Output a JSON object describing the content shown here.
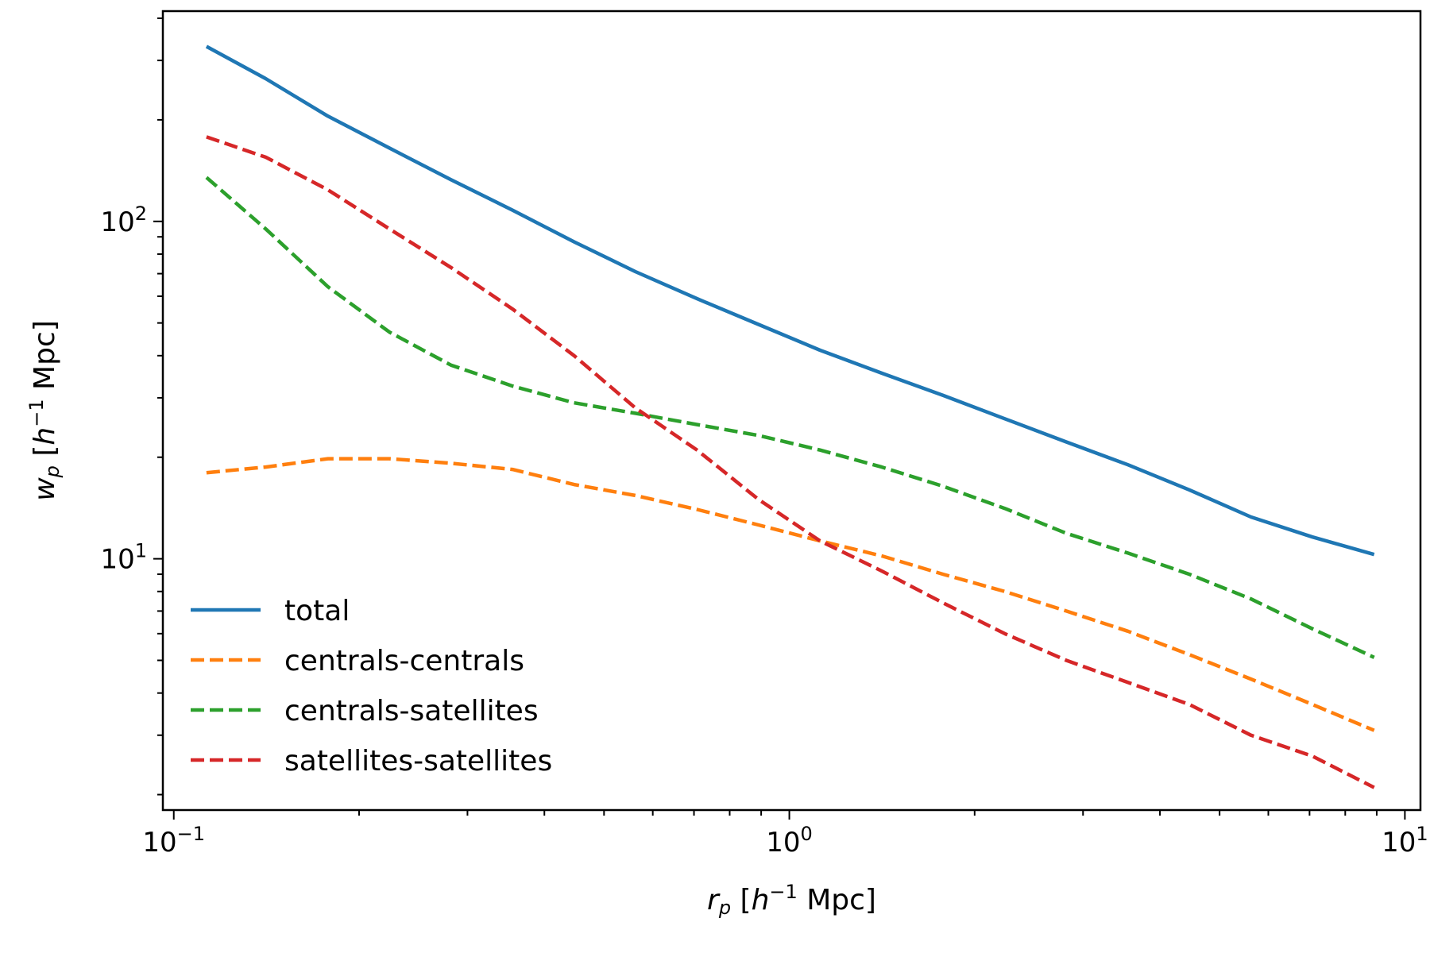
{
  "chart_data": {
    "type": "line",
    "title": "",
    "xlabel": {
      "var": "r",
      "sub": "p",
      "unit_prefix": " [",
      "h": "h",
      "exp": "−1",
      "unit": " Mpc]"
    },
    "ylabel": {
      "var": "w",
      "sub": "p",
      "unit_prefix": " [",
      "h": "h",
      "exp": "−1",
      "unit": " Mpc]"
    },
    "xscale": "log",
    "yscale": "log",
    "xlim": [
      0.096,
      10.6
    ],
    "ylim": [
      1.8,
      420
    ],
    "grid": false,
    "legend_position": "lower-left",
    "x_ticks": [
      {
        "base": "10",
        "exp": "−1",
        "value": 0.1
      },
      {
        "base": "10",
        "exp": "0",
        "value": 1
      },
      {
        "base": "10",
        "exp": "1",
        "value": 10
      }
    ],
    "y_ticks": [
      {
        "base": "10",
        "exp": "1",
        "value": 10
      },
      {
        "base": "10",
        "exp": "2",
        "value": 100
      }
    ],
    "series": [
      {
        "name": "total",
        "style": "solid",
        "color": "#1f77b4",
        "x": [
          0.113,
          0.141,
          0.178,
          0.224,
          0.282,
          0.355,
          0.447,
          0.562,
          0.708,
          0.891,
          1.122,
          1.413,
          1.778,
          2.239,
          2.818,
          3.548,
          4.467,
          5.623,
          7.079,
          8.913
        ],
        "y": [
          330,
          265,
          205,
          165,
          133,
          108,
          87,
          71,
          59,
          49.5,
          41.5,
          35.5,
          30.5,
          26,
          22.2,
          19.0,
          16.0,
          13.3,
          11.6,
          10.3
        ]
      },
      {
        "name": "centrals-centrals",
        "style": "dashed",
        "color": "#ff7f0e",
        "x": [
          0.113,
          0.141,
          0.178,
          0.224,
          0.282,
          0.355,
          0.447,
          0.562,
          0.708,
          0.891,
          1.122,
          1.413,
          1.778,
          2.239,
          2.818,
          3.548,
          4.467,
          5.623,
          7.079,
          8.913
        ],
        "y": [
          18,
          18.7,
          19.8,
          19.8,
          19.2,
          18.4,
          16.6,
          15.4,
          14.0,
          12.6,
          11.3,
          10.2,
          9.0,
          8.0,
          7.0,
          6.1,
          5.2,
          4.4,
          3.7,
          3.1
        ]
      },
      {
        "name": "centrals-satellites",
        "style": "dashed",
        "color": "#2ca02c",
        "x": [
          0.113,
          0.141,
          0.178,
          0.224,
          0.282,
          0.355,
          0.447,
          0.562,
          0.708,
          0.891,
          1.122,
          1.413,
          1.778,
          2.239,
          2.818,
          3.548,
          4.467,
          5.623,
          7.079,
          8.913
        ],
        "y": [
          135,
          95,
          64,
          47,
          37.5,
          32.5,
          29,
          27,
          25,
          23.2,
          21,
          18.7,
          16.4,
          14.1,
          11.9,
          10.4,
          9.0,
          7.6,
          6.2,
          5.1
        ]
      },
      {
        "name": "satellites-satellites",
        "style": "dashed",
        "color": "#d62728",
        "x": [
          0.113,
          0.141,
          0.178,
          0.224,
          0.282,
          0.355,
          0.447,
          0.562,
          0.708,
          0.891,
          1.122,
          1.413,
          1.778,
          2.239,
          2.818,
          3.548,
          4.467,
          5.623,
          7.079,
          8.913
        ],
        "y": [
          178,
          155,
          124,
          95,
          73,
          55,
          40,
          28,
          21,
          15,
          11.3,
          9.2,
          7.4,
          6.0,
          5.0,
          4.3,
          3.7,
          3.0,
          2.6,
          2.1
        ]
      }
    ]
  }
}
